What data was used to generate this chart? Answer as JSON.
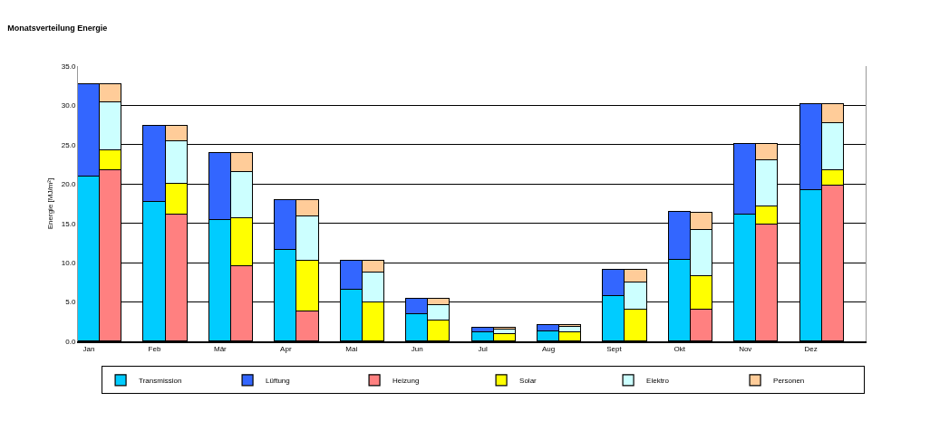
{
  "chart_data": {
    "type": "bar",
    "title": "Monatsverteilung Energie",
    "ylabel": "Energie [MJ/m²]",
    "categories": [
      "Jan",
      null,
      null,
      "Feb",
      null,
      null,
      "Mär",
      null,
      null,
      "Apr",
      null,
      null,
      "Mai",
      null,
      null,
      "Jun",
      null,
      null,
      "Jul",
      null,
      null,
      "Aug",
      null,
      null,
      "Sept",
      null,
      null,
      "Okt",
      null,
      null,
      "Nov",
      null,
      null,
      "Dez",
      null,
      null
    ],
    "stacked": true,
    "series": [
      {
        "name": "Transmission",
        "color": "#00ccff",
        "values": [
          21.0,
          null,
          null,
          17.7,
          null,
          null,
          15.4,
          null,
          null,
          11.6,
          null,
          null,
          6.6,
          null,
          null,
          3.5,
          null,
          null,
          1.1,
          null,
          null,
          1.3,
          null,
          null,
          5.8,
          null,
          null,
          10.4,
          null,
          null,
          16.1,
          null,
          null,
          19.2,
          null,
          null
        ]
      },
      {
        "name": "Lüftung",
        "color": "#3366ff",
        "values": [
          11.7,
          null,
          null,
          9.7,
          null,
          null,
          8.6,
          null,
          null,
          6.4,
          null,
          null,
          3.7,
          null,
          null,
          1.9,
          null,
          null,
          0.6,
          null,
          null,
          0.8,
          null,
          null,
          3.3,
          null,
          null,
          6.1,
          null,
          null,
          9.0,
          null,
          null,
          11.0,
          null,
          null
        ]
      },
      {
        "name": "Heizung",
        "color": "#ff8080",
        "values": [
          null,
          21.8,
          null,
          null,
          16.1,
          null,
          null,
          9.5,
          null,
          null,
          3.8,
          null,
          null,
          0,
          null,
          null,
          0,
          null,
          null,
          0,
          null,
          null,
          0,
          null,
          null,
          0,
          null,
          null,
          4.0,
          null,
          null,
          14.8,
          null,
          null,
          19.8,
          null
        ]
      },
      {
        "name": "Solar",
        "color": "#ffff00",
        "values": [
          null,
          2.5,
          null,
          null,
          3.9,
          null,
          null,
          6.2,
          null,
          null,
          6.4,
          null,
          null,
          5.0,
          null,
          null,
          2.6,
          null,
          null,
          0.9,
          null,
          null,
          1.1,
          null,
          null,
          4.0,
          null,
          null,
          4.3,
          null,
          null,
          2.3,
          null,
          null,
          2.0,
          null
        ]
      },
      {
        "name": "Elektro",
        "color": "#ccffff",
        "values": [
          null,
          6.1,
          null,
          null,
          5.5,
          null,
          null,
          5.8,
          null,
          null,
          5.7,
          null,
          null,
          3.7,
          null,
          null,
          2.0,
          null,
          null,
          0.6,
          null,
          null,
          0.7,
          null,
          null,
          3.5,
          null,
          null,
          5.9,
          null,
          null,
          5.9,
          null,
          null,
          6.0,
          null
        ]
      },
      {
        "name": "Personen",
        "color": "#ffcc99",
        "values": [
          null,
          2.3,
          null,
          null,
          1.9,
          null,
          null,
          2.5,
          null,
          null,
          2.1,
          null,
          null,
          1.6,
          null,
          null,
          0.8,
          null,
          null,
          0.2,
          null,
          null,
          0.3,
          null,
          null,
          1.6,
          null,
          null,
          2.1,
          null,
          null,
          2.1,
          null,
          null,
          2.4,
          null
        ]
      }
    ],
    "ylim": [
      0,
      35
    ],
    "yticks": [
      {
        "value": 0,
        "label": "0.0"
      },
      {
        "value": 5,
        "label": "5.0"
      },
      {
        "value": 10,
        "label": "10.0"
      },
      {
        "value": 15,
        "label": "15.0"
      },
      {
        "value": 20,
        "label": "20.0"
      },
      {
        "value": 25,
        "label": "25.0"
      },
      {
        "value": 30,
        "label": "30.0"
      },
      {
        "value": 35,
        "label": "35.0"
      }
    ],
    "grid": "y",
    "legend": "bottom"
  }
}
